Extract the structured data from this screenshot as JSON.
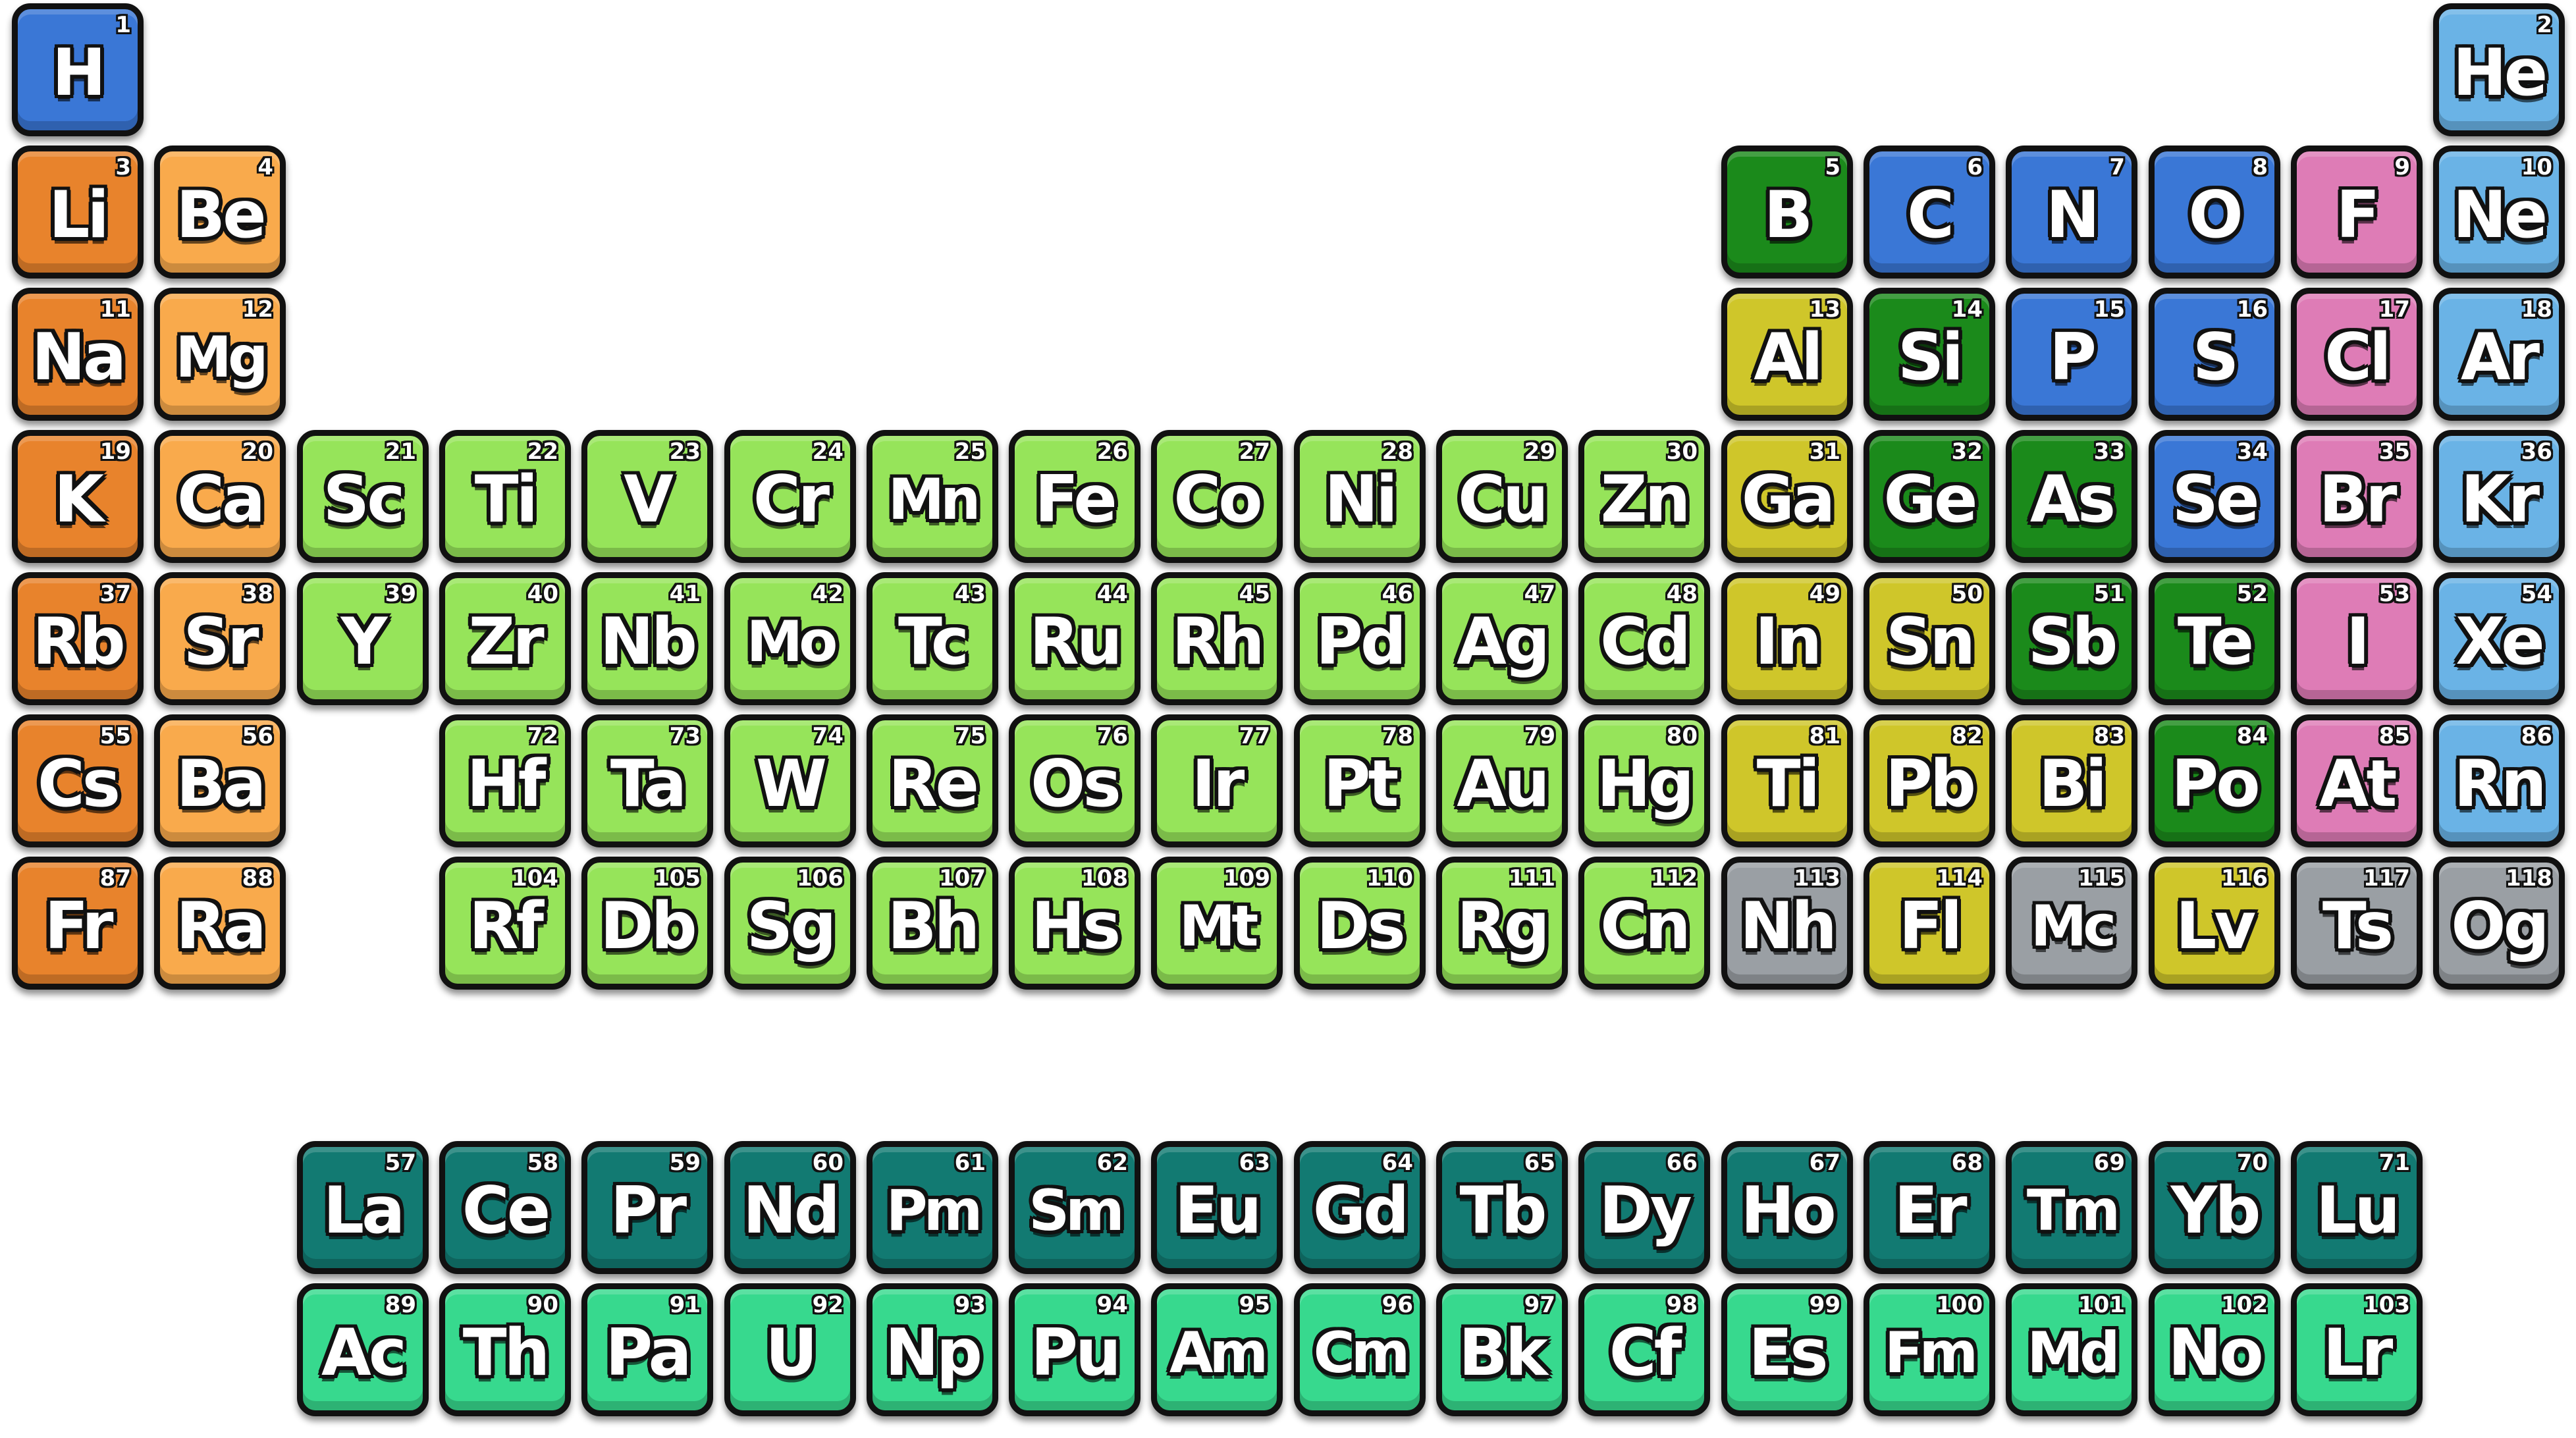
{
  "colors": {
    "alkali": "#e8832c",
    "alkaline": "#f9aa4c",
    "transition": "#96e45a",
    "post": "#cfc62a",
    "metalloid": "#1b8a1b",
    "nonmetal": "#3a77d6",
    "halogen": "#de7cb6",
    "noble": "#6ab3e6",
    "unknown": "#9a9fa4",
    "lanthanide": "#127a72",
    "actinide": "#37d98e"
  },
  "elements": [
    {
      "n": "1",
      "s": "H",
      "r": 1,
      "c": 1,
      "t": "nonmetal"
    },
    {
      "n": "2",
      "s": "He",
      "r": 1,
      "c": 18,
      "t": "noble"
    },
    {
      "n": "3",
      "s": "Li",
      "r": 2,
      "c": 1,
      "t": "alkali"
    },
    {
      "n": "4",
      "s": "Be",
      "r": 2,
      "c": 2,
      "t": "alkaline"
    },
    {
      "n": "5",
      "s": "B",
      "r": 2,
      "c": 13,
      "t": "metalloid"
    },
    {
      "n": "6",
      "s": "C",
      "r": 2,
      "c": 14,
      "t": "nonmetal"
    },
    {
      "n": "7",
      "s": "N",
      "r": 2,
      "c": 15,
      "t": "nonmetal"
    },
    {
      "n": "8",
      "s": "O",
      "r": 2,
      "c": 16,
      "t": "nonmetal"
    },
    {
      "n": "9",
      "s": "F",
      "r": 2,
      "c": 17,
      "t": "halogen"
    },
    {
      "n": "10",
      "s": "Ne",
      "r": 2,
      "c": 18,
      "t": "noble"
    },
    {
      "n": "11",
      "s": "Na",
      "r": 3,
      "c": 1,
      "t": "alkali"
    },
    {
      "n": "12",
      "s": "Mg",
      "r": 3,
      "c": 2,
      "t": "alkaline"
    },
    {
      "n": "13",
      "s": "Al",
      "r": 3,
      "c": 13,
      "t": "post"
    },
    {
      "n": "14",
      "s": "Si",
      "r": 3,
      "c": 14,
      "t": "metalloid"
    },
    {
      "n": "15",
      "s": "P",
      "r": 3,
      "c": 15,
      "t": "nonmetal"
    },
    {
      "n": "16",
      "s": "S",
      "r": 3,
      "c": 16,
      "t": "nonmetal"
    },
    {
      "n": "17",
      "s": "Cl",
      "r": 3,
      "c": 17,
      "t": "halogen"
    },
    {
      "n": "18",
      "s": "Ar",
      "r": 3,
      "c": 18,
      "t": "noble"
    },
    {
      "n": "19",
      "s": "K",
      "r": 4,
      "c": 1,
      "t": "alkali"
    },
    {
      "n": "20",
      "s": "Ca",
      "r": 4,
      "c": 2,
      "t": "alkaline"
    },
    {
      "n": "21",
      "s": "Sc",
      "r": 4,
      "c": 3,
      "t": "transition"
    },
    {
      "n": "22",
      "s": "Ti",
      "r": 4,
      "c": 4,
      "t": "transition"
    },
    {
      "n": "23",
      "s": "V",
      "r": 4,
      "c": 5,
      "t": "transition"
    },
    {
      "n": "24",
      "s": "Cr",
      "r": 4,
      "c": 6,
      "t": "transition"
    },
    {
      "n": "25",
      "s": "Mn",
      "r": 4,
      "c": 7,
      "t": "transition"
    },
    {
      "n": "26",
      "s": "Fe",
      "r": 4,
      "c": 8,
      "t": "transition"
    },
    {
      "n": "27",
      "s": "Co",
      "r": 4,
      "c": 9,
      "t": "transition"
    },
    {
      "n": "28",
      "s": "Ni",
      "r": 4,
      "c": 10,
      "t": "transition"
    },
    {
      "n": "29",
      "s": "Cu",
      "r": 4,
      "c": 11,
      "t": "transition"
    },
    {
      "n": "30",
      "s": "Zn",
      "r": 4,
      "c": 12,
      "t": "transition"
    },
    {
      "n": "31",
      "s": "Ga",
      "r": 4,
      "c": 13,
      "t": "post"
    },
    {
      "n": "32",
      "s": "Ge",
      "r": 4,
      "c": 14,
      "t": "metalloid"
    },
    {
      "n": "33",
      "s": "As",
      "r": 4,
      "c": 15,
      "t": "metalloid"
    },
    {
      "n": "34",
      "s": "Se",
      "r": 4,
      "c": 16,
      "t": "nonmetal"
    },
    {
      "n": "35",
      "s": "Br",
      "r": 4,
      "c": 17,
      "t": "halogen"
    },
    {
      "n": "36",
      "s": "Kr",
      "r": 4,
      "c": 18,
      "t": "noble"
    },
    {
      "n": "37",
      "s": "Rb",
      "r": 5,
      "c": 1,
      "t": "alkali"
    },
    {
      "n": "38",
      "s": "Sr",
      "r": 5,
      "c": 2,
      "t": "alkaline"
    },
    {
      "n": "39",
      "s": "Y",
      "r": 5,
      "c": 3,
      "t": "transition"
    },
    {
      "n": "40",
      "s": "Zr",
      "r": 5,
      "c": 4,
      "t": "transition"
    },
    {
      "n": "41",
      "s": "Nb",
      "r": 5,
      "c": 5,
      "t": "transition"
    },
    {
      "n": "42",
      "s": "Mo",
      "r": 5,
      "c": 6,
      "t": "transition"
    },
    {
      "n": "43",
      "s": "Tc",
      "r": 5,
      "c": 7,
      "t": "transition"
    },
    {
      "n": "44",
      "s": "Ru",
      "r": 5,
      "c": 8,
      "t": "transition"
    },
    {
      "n": "45",
      "s": "Rh",
      "r": 5,
      "c": 9,
      "t": "transition"
    },
    {
      "n": "46",
      "s": "Pd",
      "r": 5,
      "c": 10,
      "t": "transition"
    },
    {
      "n": "47",
      "s": "Ag",
      "r": 5,
      "c": 11,
      "t": "transition"
    },
    {
      "n": "48",
      "s": "Cd",
      "r": 5,
      "c": 12,
      "t": "transition"
    },
    {
      "n": "49",
      "s": "In",
      "r": 5,
      "c": 13,
      "t": "post"
    },
    {
      "n": "50",
      "s": "Sn",
      "r": 5,
      "c": 14,
      "t": "post"
    },
    {
      "n": "51",
      "s": "Sb",
      "r": 5,
      "c": 15,
      "t": "metalloid"
    },
    {
      "n": "52",
      "s": "Te",
      "r": 5,
      "c": 16,
      "t": "metalloid"
    },
    {
      "n": "53",
      "s": "I",
      "r": 5,
      "c": 17,
      "t": "halogen"
    },
    {
      "n": "54",
      "s": "Xe",
      "r": 5,
      "c": 18,
      "t": "noble"
    },
    {
      "n": "55",
      "s": "Cs",
      "r": 6,
      "c": 1,
      "t": "alkali"
    },
    {
      "n": "56",
      "s": "Ba",
      "r": 6,
      "c": 2,
      "t": "alkaline"
    },
    {
      "n": "72",
      "s": "Hf",
      "r": 6,
      "c": 4,
      "t": "transition"
    },
    {
      "n": "73",
      "s": "Ta",
      "r": 6,
      "c": 5,
      "t": "transition"
    },
    {
      "n": "74",
      "s": "W",
      "r": 6,
      "c": 6,
      "t": "transition"
    },
    {
      "n": "75",
      "s": "Re",
      "r": 6,
      "c": 7,
      "t": "transition"
    },
    {
      "n": "76",
      "s": "Os",
      "r": 6,
      "c": 8,
      "t": "transition"
    },
    {
      "n": "77",
      "s": "Ir",
      "r": 6,
      "c": 9,
      "t": "transition"
    },
    {
      "n": "78",
      "s": "Pt",
      "r": 6,
      "c": 10,
      "t": "transition"
    },
    {
      "n": "79",
      "s": "Au",
      "r": 6,
      "c": 11,
      "t": "transition"
    },
    {
      "n": "80",
      "s": "Hg",
      "r": 6,
      "c": 12,
      "t": "transition"
    },
    {
      "n": "81",
      "s": "Ti",
      "r": 6,
      "c": 13,
      "t": "post"
    },
    {
      "n": "82",
      "s": "Pb",
      "r": 6,
      "c": 14,
      "t": "post"
    },
    {
      "n": "83",
      "s": "Bi",
      "r": 6,
      "c": 15,
      "t": "post"
    },
    {
      "n": "84",
      "s": "Po",
      "r": 6,
      "c": 16,
      "t": "metalloid"
    },
    {
      "n": "85",
      "s": "At",
      "r": 6,
      "c": 17,
      "t": "halogen"
    },
    {
      "n": "86",
      "s": "Rn",
      "r": 6,
      "c": 18,
      "t": "noble"
    },
    {
      "n": "87",
      "s": "Fr",
      "r": 7,
      "c": 1,
      "t": "alkali"
    },
    {
      "n": "88",
      "s": "Ra",
      "r": 7,
      "c": 2,
      "t": "alkaline"
    },
    {
      "n": "104",
      "s": "Rf",
      "r": 7,
      "c": 4,
      "t": "transition"
    },
    {
      "n": "105",
      "s": "Db",
      "r": 7,
      "c": 5,
      "t": "transition"
    },
    {
      "n": "106",
      "s": "Sg",
      "r": 7,
      "c": 6,
      "t": "transition"
    },
    {
      "n": "107",
      "s": "Bh",
      "r": 7,
      "c": 7,
      "t": "transition"
    },
    {
      "n": "108",
      "s": "Hs",
      "r": 7,
      "c": 8,
      "t": "transition"
    },
    {
      "n": "109",
      "s": "Mt",
      "r": 7,
      "c": 9,
      "t": "transition"
    },
    {
      "n": "110",
      "s": "Ds",
      "r": 7,
      "c": 10,
      "t": "transition"
    },
    {
      "n": "111",
      "s": "Rg",
      "r": 7,
      "c": 11,
      "t": "transition"
    },
    {
      "n": "112",
      "s": "Cn",
      "r": 7,
      "c": 12,
      "t": "transition"
    },
    {
      "n": "113",
      "s": "Nh",
      "r": 7,
      "c": 13,
      "t": "unknown"
    },
    {
      "n": "114",
      "s": "Fl",
      "r": 7,
      "c": 14,
      "t": "post"
    },
    {
      "n": "115",
      "s": "Mc",
      "r": 7,
      "c": 15,
      "t": "unknown"
    },
    {
      "n": "116",
      "s": "Lv",
      "r": 7,
      "c": 16,
      "t": "post"
    },
    {
      "n": "117",
      "s": "Ts",
      "r": 7,
      "c": 17,
      "t": "unknown"
    },
    {
      "n": "118",
      "s": "Og",
      "r": 7,
      "c": 18,
      "t": "unknown"
    },
    {
      "n": "57",
      "s": "La",
      "r": 9,
      "c": 3,
      "t": "lanthanide"
    },
    {
      "n": "58",
      "s": "Ce",
      "r": 9,
      "c": 4,
      "t": "lanthanide"
    },
    {
      "n": "59",
      "s": "Pr",
      "r": 9,
      "c": 5,
      "t": "lanthanide"
    },
    {
      "n": "60",
      "s": "Nd",
      "r": 9,
      "c": 6,
      "t": "lanthanide"
    },
    {
      "n": "61",
      "s": "Pm",
      "r": 9,
      "c": 7,
      "t": "lanthanide"
    },
    {
      "n": "62",
      "s": "Sm",
      "r": 9,
      "c": 8,
      "t": "lanthanide"
    },
    {
      "n": "63",
      "s": "Eu",
      "r": 9,
      "c": 9,
      "t": "lanthanide"
    },
    {
      "n": "64",
      "s": "Gd",
      "r": 9,
      "c": 10,
      "t": "lanthanide"
    },
    {
      "n": "65",
      "s": "Tb",
      "r": 9,
      "c": 11,
      "t": "lanthanide"
    },
    {
      "n": "66",
      "s": "Dy",
      "r": 9,
      "c": 12,
      "t": "lanthanide"
    },
    {
      "n": "67",
      "s": "Ho",
      "r": 9,
      "c": 13,
      "t": "lanthanide"
    },
    {
      "n": "68",
      "s": "Er",
      "r": 9,
      "c": 14,
      "t": "lanthanide"
    },
    {
      "n": "69",
      "s": "Tm",
      "r": 9,
      "c": 15,
      "t": "lanthanide"
    },
    {
      "n": "70",
      "s": "Yb",
      "r": 9,
      "c": 16,
      "t": "lanthanide"
    },
    {
      "n": "71",
      "s": "Lu",
      "r": 9,
      "c": 17,
      "t": "lanthanide"
    },
    {
      "n": "89",
      "s": "Ac",
      "r": 10,
      "c": 3,
      "t": "actinide"
    },
    {
      "n": "90",
      "s": "Th",
      "r": 10,
      "c": 4,
      "t": "actinide"
    },
    {
      "n": "91",
      "s": "Pa",
      "r": 10,
      "c": 5,
      "t": "actinide"
    },
    {
      "n": "92",
      "s": "U",
      "r": 10,
      "c": 6,
      "t": "actinide"
    },
    {
      "n": "93",
      "s": "Np",
      "r": 10,
      "c": 7,
      "t": "actinide"
    },
    {
      "n": "94",
      "s": "Pu",
      "r": 10,
      "c": 8,
      "t": "actinide"
    },
    {
      "n": "95",
      "s": "Am",
      "r": 10,
      "c": 9,
      "t": "actinide"
    },
    {
      "n": "96",
      "s": "Cm",
      "r": 10,
      "c": 10,
      "t": "actinide"
    },
    {
      "n": "97",
      "s": "Bk",
      "r": 10,
      "c": 11,
      "t": "actinide"
    },
    {
      "n": "98",
      "s": "Cf",
      "r": 10,
      "c": 12,
      "t": "actinide"
    },
    {
      "n": "99",
      "s": "Es",
      "r": 10,
      "c": 13,
      "t": "actinide"
    },
    {
      "n": "100",
      "s": "Fm",
      "r": 10,
      "c": 14,
      "t": "actinide"
    },
    {
      "n": "101",
      "s": "Md",
      "r": 10,
      "c": 15,
      "t": "actinide"
    },
    {
      "n": "102",
      "s": "No",
      "r": 10,
      "c": 16,
      "t": "actinide"
    },
    {
      "n": "103",
      "s": "Lr",
      "r": 10,
      "c": 17,
      "t": "actinide"
    }
  ]
}
